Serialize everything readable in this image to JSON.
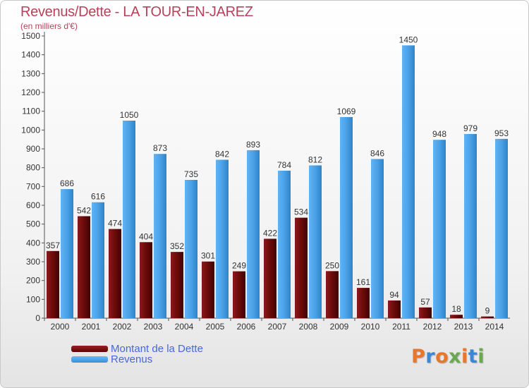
{
  "header": {
    "title": "Revenus/Dette - LA TOUR-EN-JAREZ",
    "subtitle": "(en milliers d'€)"
  },
  "chart_data": {
    "type": "bar",
    "title": "Revenus/Dette - LA TOUR-EN-JAREZ",
    "ylabel": "(en milliers d'€)",
    "xlabel": "",
    "categories": [
      "2000",
      "2001",
      "2002",
      "2003",
      "2004",
      "2005",
      "2006",
      "2007",
      "2008",
      "2009",
      "2010",
      "2011",
      "2012",
      "2013",
      "2014"
    ],
    "series": [
      {
        "name": "Montant de la Dette",
        "color": "#7a1010",
        "labels": [
          "357",
          "542",
          "474",
          "404",
          "352",
          "301",
          "249",
          "422",
          "534",
          "250",
          "161",
          "94",
          "57",
          "18",
          "9"
        ],
        "values": [
          357,
          542,
          474,
          404,
          352,
          301,
          249,
          422,
          534,
          250,
          161,
          94,
          57,
          18,
          9
        ]
      },
      {
        "name": "Revenus",
        "color": "#4aa1e6",
        "labels": [
          "686",
          "616",
          "1050",
          "873",
          "735",
          "842",
          "893",
          "784",
          "812",
          "1069",
          "846",
          "1450",
          "948",
          "979",
          "953"
        ],
        "values": [
          686,
          616,
          1050,
          873,
          735,
          842,
          893,
          784,
          812,
          1069,
          846,
          1450,
          948,
          979,
          953
        ]
      }
    ],
    "y_ticks": [
      "0",
      "100",
      "200",
      "300",
      "400",
      "500",
      "600",
      "700",
      "800",
      "900",
      "1000",
      "1100",
      "1200",
      "1300",
      "1400",
      "1500"
    ],
    "ylim": [
      0,
      1500
    ],
    "grid": false,
    "legend_position": "bottom-left"
  },
  "legend": {
    "items": [
      {
        "label": "Montant de la Dette",
        "color": "#7a1010"
      },
      {
        "label": "Revenus",
        "color": "#4aa1e6"
      }
    ]
  },
  "logo": {
    "letters": [
      "P",
      "r",
      "o",
      "x",
      "i",
      "t",
      "i"
    ],
    "colors": [
      "#e8772b",
      "#3c86d6",
      "#e8772b",
      "#6aa84f",
      "#e8772b",
      "#3c86d6",
      "#6aa84f"
    ]
  }
}
